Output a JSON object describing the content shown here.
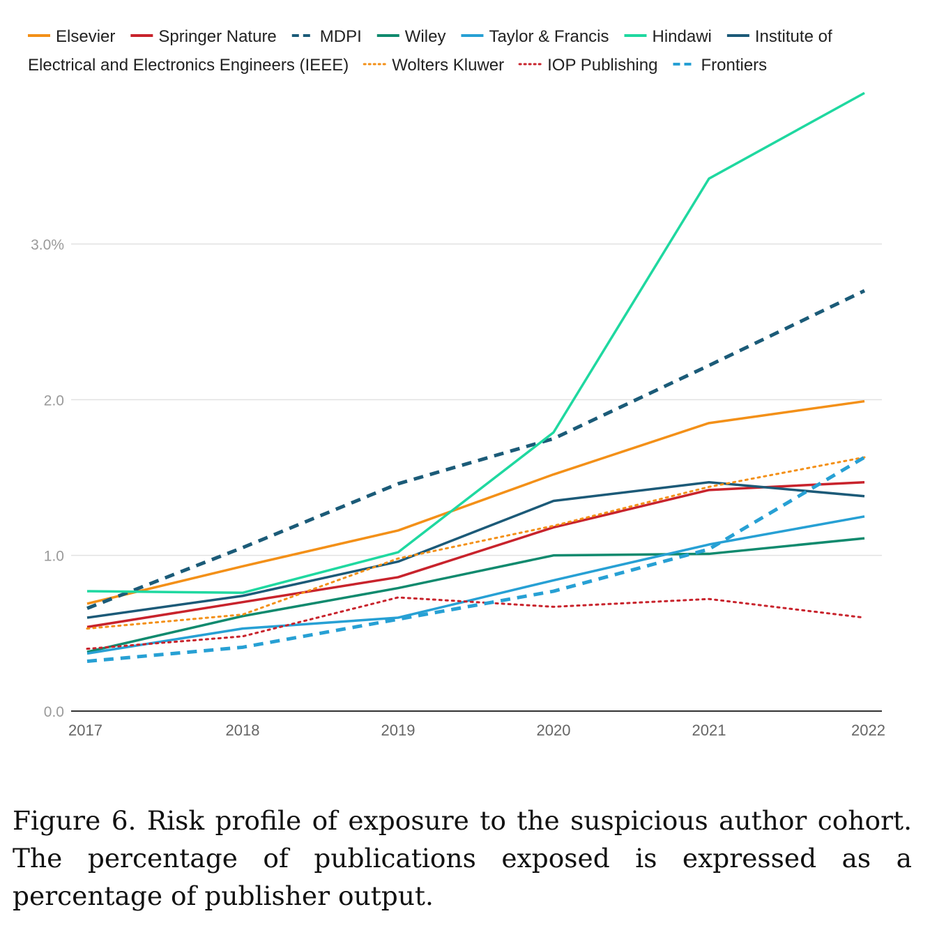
{
  "caption": "Figure 6.  Risk profile of exposure to the suspicious author cohort. The percentage of publications exposed is expressed as a percentage of publisher output.",
  "chart_data": {
    "type": "line",
    "x": [
      "2017",
      "2018",
      "2019",
      "2020",
      "2021",
      "2022"
    ],
    "y_ticks": [
      "0.0",
      "1.0",
      "2.0",
      "3.0%"
    ],
    "ylim": [
      0,
      4
    ],
    "grid": true,
    "legend_position": "top",
    "series": [
      {
        "name": "Elsevier",
        "color": "#f39018",
        "style": "solid",
        "values": [
          0.69,
          0.93,
          1.16,
          1.52,
          1.85,
          1.99
        ]
      },
      {
        "name": "Springer Nature",
        "color": "#c8232c",
        "style": "solid",
        "values": [
          0.54,
          0.7,
          0.86,
          1.18,
          1.42,
          1.47
        ]
      },
      {
        "name": "MDPI",
        "color": "#1b5b78",
        "style": "dashed",
        "values": [
          0.66,
          1.05,
          1.46,
          1.75,
          2.22,
          2.7
        ]
      },
      {
        "name": "Wiley",
        "color": "#108a6e",
        "style": "solid",
        "values": [
          0.38,
          0.61,
          0.79,
          1.0,
          1.01,
          1.11
        ]
      },
      {
        "name": "Taylor & Francis",
        "color": "#27a0d4",
        "style": "solid",
        "values": [
          0.37,
          0.53,
          0.6,
          0.84,
          1.07,
          1.25
        ]
      },
      {
        "name": "Hindawi",
        "color": "#1fd8a0",
        "style": "solid",
        "values": [
          0.77,
          0.76,
          1.02,
          1.79,
          3.42,
          3.97
        ]
      },
      {
        "name": "Institute of Electrical and Electronics Engineers (IEEE)",
        "color": "#1c5a78",
        "style": "solid",
        "values": [
          0.6,
          0.74,
          0.96,
          1.35,
          1.47,
          1.38
        ]
      },
      {
        "name": "Wolters Kluwer",
        "color": "#f39018",
        "style": "dotted",
        "values": [
          0.53,
          0.62,
          0.98,
          1.19,
          1.44,
          1.63
        ]
      },
      {
        "name": "IOP Publishing",
        "color": "#c8232c",
        "style": "dotted",
        "values": [
          0.4,
          0.48,
          0.73,
          0.67,
          0.72,
          0.6
        ]
      },
      {
        "name": "Frontiers",
        "color": "#27a0d4",
        "style": "dashed",
        "values": [
          0.32,
          0.41,
          0.59,
          0.77,
          1.04,
          1.63
        ]
      }
    ]
  },
  "legend": {
    "rows": [
      [
        {
          "label": "Elsevier",
          "series": 0
        },
        {
          "label": "Springer Nature",
          "series": 1
        },
        {
          "label": "MDPI",
          "series": 2
        },
        {
          "label": "Wiley",
          "series": 3
        },
        {
          "label": "Taylor & Francis",
          "series": 4
        },
        {
          "label": "Hindawi",
          "series": 5
        },
        {
          "label": "Institute of",
          "series": 6
        }
      ],
      [
        {
          "label": "Electrical and Electronics Engineers (IEEE)",
          "series": -1
        },
        {
          "label": "Wolters Kluwer",
          "series": 7
        },
        {
          "label": "IOP Publishing",
          "series": 8
        },
        {
          "label": "Frontiers",
          "series": 9
        }
      ]
    ]
  }
}
